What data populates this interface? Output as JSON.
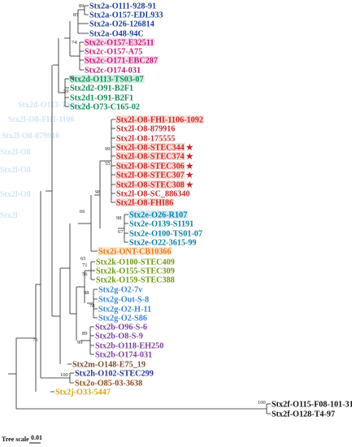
{
  "leaves": [
    {
      "label": "Stx2a-O111-928-91",
      "color": "#1f3f94"
    },
    {
      "label": "Stx2a-O157-EDL933",
      "color": "#1f3f94"
    },
    {
      "label": "Stx2a-O26-126814",
      "color": "#1f3f94"
    },
    {
      "label": "Stx2a-O48-94C",
      "color": "#1f3f94"
    },
    {
      "label": "Stx2c-O157-E32511",
      "color": "#c2187a",
      "bg": "#f7d9e8"
    },
    {
      "label": "Stx2c-O157-A75",
      "color": "#c2187a"
    },
    {
      "label": "Stx2c-O171-EBC287",
      "color": "#c2187a",
      "bg": "#f7d9e8"
    },
    {
      "label": "Stx2c-O174-031",
      "color": "#c2187a"
    },
    {
      "label": "Stx2d-O113-TS03-07",
      "color": "#0e8a52",
      "bg": "#d4efe2"
    },
    {
      "label": "Stx2d2-O91-B2F1",
      "color": "#0e8a52"
    },
    {
      "label": "Stx2d1-O91-B2F1",
      "color": "#0e8a52"
    },
    {
      "label": "Stx2d-O73-C165-02",
      "color": "#0e8a52"
    },
    {
      "label": "Stx2l-O8-FHI-1106-1092",
      "color": "#c62828",
      "bg": "#fadcd6"
    },
    {
      "label": "Stx2l-O8-879916",
      "color": "#c62828"
    },
    {
      "label": "Stx2l-O8-175555",
      "color": "#c62828"
    },
    {
      "label": "Stx2l-O8-STEC344",
      "color": "#c62828",
      "bg": "#fadcd6",
      "star": "★"
    },
    {
      "label": "Stx2l-O8-STEC374",
      "color": "#c62828",
      "bg": "#fadcd6",
      "star": "★"
    },
    {
      "label": "Stx2l-O8-STEC306",
      "color": "#c62828",
      "bg": "#fadcd6",
      "star": "★"
    },
    {
      "label": "Stx2l-O8-STEC307",
      "color": "#c62828",
      "bg": "#fadcd6",
      "star": "★"
    },
    {
      "label": "Stx2l-O8-STEC308",
      "color": "#c62828",
      "bg": "#fadcd6",
      "star": "★"
    },
    {
      "label": "Stx2l-O8-SC_886340",
      "color": "#c62828"
    },
    {
      "label": "Stx2l-O8-FHI86",
      "color": "#c62828",
      "bg": "#fadcd6"
    },
    {
      "label": "Stx2e-O26-R107",
      "color": "#0b7fa3",
      "bg": "#d2ecf5"
    },
    {
      "label": "Stx2e-O139-S1191",
      "color": "#0b7fa3"
    },
    {
      "label": "Stx2e-O100-TS01-07",
      "color": "#0b7fa3"
    },
    {
      "label": "Stx2e-O22-3615-99",
      "color": "#0b7fa3"
    },
    {
      "label": "Stx2i-ONT-CB10366",
      "color": "#e07b1a",
      "bg": "#fde6cf"
    },
    {
      "label": "Stx2k-O100-STEC409",
      "color": "#6a9a12"
    },
    {
      "label": "Stx2k-O155-STEC309",
      "color": "#6a9a12"
    },
    {
      "label": "Stx2k-O159-STEC388",
      "color": "#6a9a12"
    },
    {
      "label": "Stx2g-O2-7v",
      "color": "#3d86d4"
    },
    {
      "label": "Stx2g-Out-S-8",
      "color": "#3d86d4"
    },
    {
      "label": "Stx2g-O2-H-11",
      "color": "#3d86d4"
    },
    {
      "label": "Stx2g-O2-S86",
      "color": "#3d86d4"
    },
    {
      "label": "Stx2b-O96-S-6",
      "color": "#7b3fa0"
    },
    {
      "label": "Stx2b-O8-S-9",
      "color": "#7b3fa0"
    },
    {
      "label": "Stx2b-O118-EH250",
      "color": "#7b3fa0"
    },
    {
      "label": "Stx2b-O174-031",
      "color": "#7b3fa0"
    },
    {
      "label": "Stx2m-O148-E75_19",
      "color": "#7a4a2a"
    },
    {
      "label": "Stx2h-O102-STEC299",
      "color": "#283593"
    },
    {
      "label": "Stx2o-O85-03-3638",
      "color": "#8b4a1c"
    },
    {
      "label": "Stx2j-O33-5447",
      "color": "#d4a21a"
    },
    {
      "label": "Stx2f-O115-F08-101-31",
      "color": "#111111"
    },
    {
      "label": "Stx2f-O128-T4-97",
      "color": "#111111"
    }
  ],
  "supports": [
    "89",
    "85",
    "74",
    "59",
    "78",
    "99",
    "55",
    "98",
    "98",
    "67",
    "66",
    "65",
    "71",
    "56",
    "98",
    "78",
    "89",
    "99",
    "100",
    "76",
    "100"
  ],
  "scale": {
    "label": "Tree scale",
    "value": "0.01"
  }
}
